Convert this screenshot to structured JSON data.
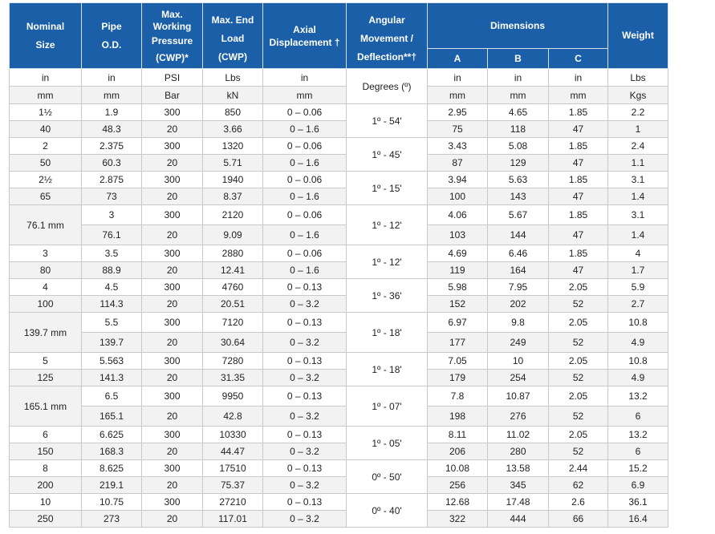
{
  "headers": {
    "nominal_size": [
      "Nominal",
      "Size"
    ],
    "pipe_od": [
      "Pipe",
      "O.D."
    ],
    "max_working_pressure": [
      "Max.",
      "Working",
      "Pressure",
      "(CWP)*"
    ],
    "max_end_load": [
      "Max. End",
      "Load",
      "(CWP)"
    ],
    "axial_displacement": [
      "Axial",
      "Displacement †"
    ],
    "angular_movement": [
      "Angular",
      "Movement /",
      "Deflection**†"
    ],
    "dimensions": "Dimensions",
    "dim_a": "A",
    "dim_b": "B",
    "dim_c": "C",
    "weight": "Weight"
  },
  "units": {
    "imperial": [
      "in",
      "in",
      "PSI",
      "Lbs",
      "in",
      "in",
      "in",
      "in",
      "Lbs"
    ],
    "metric": [
      "mm",
      "mm",
      "Bar",
      "kN",
      "mm",
      "mm",
      "mm",
      "mm",
      "Kgs"
    ],
    "angle": "Degrees (º)"
  },
  "sizes": [
    {
      "merged": false,
      "nominal": [
        "1½",
        "40"
      ],
      "od": [
        "1.9",
        "48.3"
      ],
      "pressure": [
        "300",
        "20"
      ],
      "load": [
        "850",
        "3.66"
      ],
      "axial": [
        "0 – 0.06",
        "0 – 1.6"
      ],
      "angle": "1º - 54'",
      "a": [
        "2.95",
        "75"
      ],
      "b": [
        "4.65",
        "118"
      ],
      "c": [
        "1.85",
        "47"
      ],
      "weight": [
        "2.2",
        "1"
      ]
    },
    {
      "merged": false,
      "nominal": [
        "2",
        "50"
      ],
      "od": [
        "2.375",
        "60.3"
      ],
      "pressure": [
        "300",
        "20"
      ],
      "load": [
        "1320",
        "5.71"
      ],
      "axial": [
        "0 – 0.06",
        "0 – 1.6"
      ],
      "angle": "1º - 45'",
      "a": [
        "3.43",
        "87"
      ],
      "b": [
        "5.08",
        "129"
      ],
      "c": [
        "1.85",
        "47"
      ],
      "weight": [
        "2.4",
        "1.1"
      ]
    },
    {
      "merged": false,
      "nominal": [
        "2½",
        "65"
      ],
      "od": [
        "2.875",
        "73"
      ],
      "pressure": [
        "300",
        "20"
      ],
      "load": [
        "1940",
        "8.37"
      ],
      "axial": [
        "0 – 0.06",
        "0 – 1.6"
      ],
      "angle": "1º - 15'",
      "a": [
        "3.94",
        "100"
      ],
      "b": [
        "5.63",
        "143"
      ],
      "c": [
        "1.85",
        "47"
      ],
      "weight": [
        "3.1",
        "1.4"
      ]
    },
    {
      "merged": true,
      "nominal": [
        "76.1 mm"
      ],
      "od": [
        "3",
        "76.1"
      ],
      "pressure": [
        "300",
        "20"
      ],
      "load": [
        "2120",
        "9.09"
      ],
      "axial": [
        "0 – 0.06",
        "0 – 1.6"
      ],
      "angle": "1º - 12'",
      "a": [
        "4.06",
        "103"
      ],
      "b": [
        "5.67",
        "144"
      ],
      "c": [
        "1.85",
        "47"
      ],
      "weight": [
        "3.1",
        "1.4"
      ]
    },
    {
      "merged": false,
      "nominal": [
        "3",
        "80"
      ],
      "od": [
        "3.5",
        "88.9"
      ],
      "pressure": [
        "300",
        "20"
      ],
      "load": [
        "2880",
        "12.41"
      ],
      "axial": [
        "0 – 0.06",
        "0 – 1.6"
      ],
      "angle": "1º - 12'",
      "a": [
        "4.69",
        "119"
      ],
      "b": [
        "6.46",
        "164"
      ],
      "c": [
        "1.85",
        "47"
      ],
      "weight": [
        "4",
        "1.7"
      ]
    },
    {
      "merged": false,
      "nominal": [
        "4",
        "100"
      ],
      "od": [
        "4.5",
        "114.3"
      ],
      "pressure": [
        "300",
        "20"
      ],
      "load": [
        "4760",
        "20.51"
      ],
      "axial": [
        "0 – 0.13",
        "0 – 3.2"
      ],
      "angle": "1º - 36'",
      "a": [
        "5.98",
        "152"
      ],
      "b": [
        "7.95",
        "202"
      ],
      "c": [
        "2.05",
        "52"
      ],
      "weight": [
        "5.9",
        "2.7"
      ]
    },
    {
      "merged": true,
      "nominal": [
        "139.7 mm"
      ],
      "od": [
        "5.5",
        "139.7"
      ],
      "pressure": [
        "300",
        "20"
      ],
      "load": [
        "7120",
        "30.64"
      ],
      "axial": [
        "0 – 0.13",
        "0 – 3.2"
      ],
      "angle": "1º - 18'",
      "a": [
        "6.97",
        "177"
      ],
      "b": [
        "9.8",
        "249"
      ],
      "c": [
        "2.05",
        "52"
      ],
      "weight": [
        "10.8",
        "4.9"
      ]
    },
    {
      "merged": false,
      "nominal": [
        "5",
        "125"
      ],
      "od": [
        "5.563",
        "141.3"
      ],
      "pressure": [
        "300",
        "20"
      ],
      "load": [
        "7280",
        "31.35"
      ],
      "axial": [
        "0 – 0.13",
        "0 – 3.2"
      ],
      "angle": "1º - 18'",
      "a": [
        "7.05",
        "179"
      ],
      "b": [
        "10",
        "254"
      ],
      "c": [
        "2.05",
        "52"
      ],
      "weight": [
        "10.8",
        "4.9"
      ]
    },
    {
      "merged": true,
      "nominal": [
        "165.1 mm"
      ],
      "od": [
        "6.5",
        "165.1"
      ],
      "pressure": [
        "300",
        "20"
      ],
      "load": [
        "9950",
        "42.8"
      ],
      "axial": [
        "0 – 0.13",
        "0 – 3.2"
      ],
      "angle": "1º - 07'",
      "a": [
        "7.8",
        "198"
      ],
      "b": [
        "10.87",
        "276"
      ],
      "c": [
        "2.05",
        "52"
      ],
      "weight": [
        "13.2",
        "6"
      ]
    },
    {
      "merged": false,
      "nominal": [
        "6",
        "150"
      ],
      "od": [
        "6.625",
        "168.3"
      ],
      "pressure": [
        "300",
        "20"
      ],
      "load": [
        "10330",
        "44.47"
      ],
      "axial": [
        "0 – 0.13",
        "0 – 3.2"
      ],
      "angle": "1º - 05'",
      "a": [
        "8.11",
        "206"
      ],
      "b": [
        "11.02",
        "280"
      ],
      "c": [
        "2.05",
        "52"
      ],
      "weight": [
        "13.2",
        "6"
      ]
    },
    {
      "merged": false,
      "nominal": [
        "8",
        "200"
      ],
      "od": [
        "8.625",
        "219.1"
      ],
      "pressure": [
        "300",
        "20"
      ],
      "load": [
        "17510",
        "75.37"
      ],
      "axial": [
        "0 – 0.13",
        "0 – 3.2"
      ],
      "angle": "0º - 50'",
      "a": [
        "10.08",
        "256"
      ],
      "b": [
        "13.58",
        "345"
      ],
      "c": [
        "2.44",
        "62"
      ],
      "weight": [
        "15.2",
        "6.9"
      ]
    },
    {
      "merged": false,
      "nominal": [
        "10",
        "250"
      ],
      "od": [
        "10.75",
        "273"
      ],
      "pressure": [
        "300",
        "20"
      ],
      "load": [
        "27210",
        "117.01"
      ],
      "axial": [
        "0 – 0.13",
        "0 – 3.2"
      ],
      "angle": "0º - 40'",
      "a": [
        "12.68",
        "322"
      ],
      "b": [
        "17.48",
        "444"
      ],
      "c": [
        "2.6",
        "66"
      ],
      "weight": [
        "36.1",
        "16.4"
      ]
    }
  ]
}
